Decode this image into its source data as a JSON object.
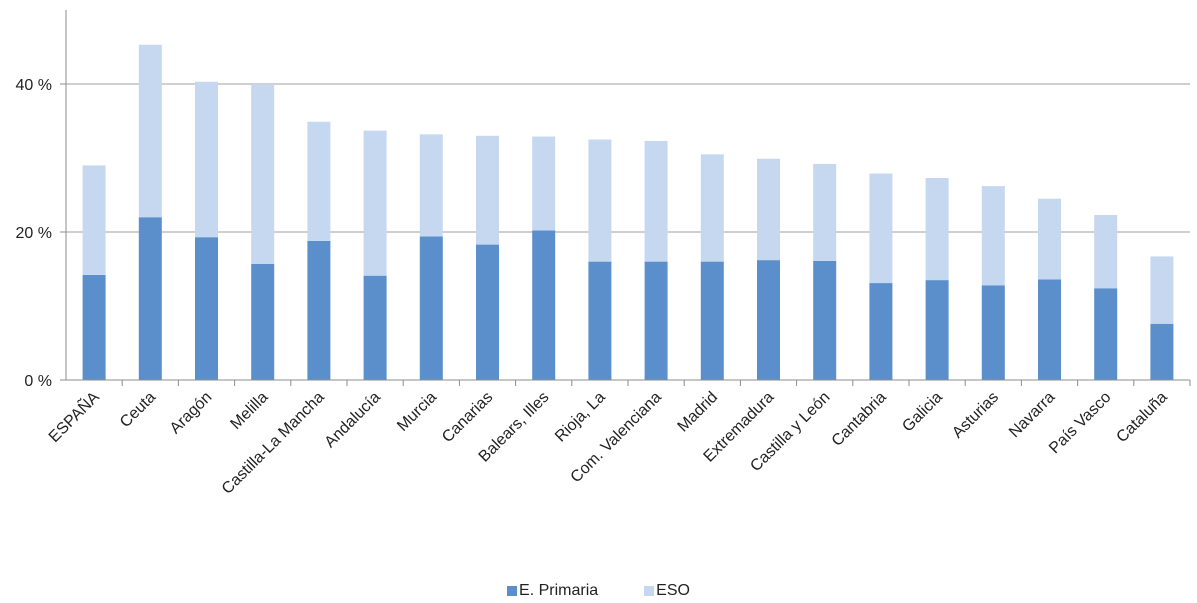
{
  "chart_data": {
    "type": "bar",
    "stacked": true,
    "categories": [
      "ESPAÑA",
      "Ceuta",
      "Aragón",
      "Melilla",
      "Castilla-La Mancha",
      "Andalucía",
      "Murcia",
      "Canarias",
      "Balears, Illes",
      "Rioja, La",
      "Com. Valenciana",
      "Madrid",
      "Extremadura",
      "Castilla y León",
      "Cantabria",
      "Galicia",
      "Asturias",
      "Navarra",
      "País Vasco",
      "Cataluña"
    ],
    "series": [
      {
        "name": "E. Primaria",
        "color": "#5b8fcc",
        "values": [
          14.2,
          22.0,
          19.3,
          15.7,
          18.8,
          14.1,
          19.4,
          18.3,
          20.2,
          16.0,
          16.0,
          16.0,
          16.2,
          16.1,
          13.1,
          13.5,
          12.8,
          13.6,
          12.4,
          7.6
        ]
      },
      {
        "name": "ESO",
        "color": "#c6d8f0",
        "values": [
          14.8,
          23.3,
          21.0,
          24.3,
          16.1,
          19.6,
          13.8,
          14.7,
          12.7,
          16.5,
          16.3,
          14.5,
          13.7,
          13.1,
          14.8,
          13.8,
          13.4,
          10.9,
          9.9,
          9.1
        ]
      }
    ],
    "y_ticks": [
      "0 %",
      "20 %",
      "40 %"
    ],
    "ylim": [
      0,
      50
    ],
    "grid": true,
    "legend": "bottom-center",
    "xlabel": "",
    "ylabel": ""
  }
}
